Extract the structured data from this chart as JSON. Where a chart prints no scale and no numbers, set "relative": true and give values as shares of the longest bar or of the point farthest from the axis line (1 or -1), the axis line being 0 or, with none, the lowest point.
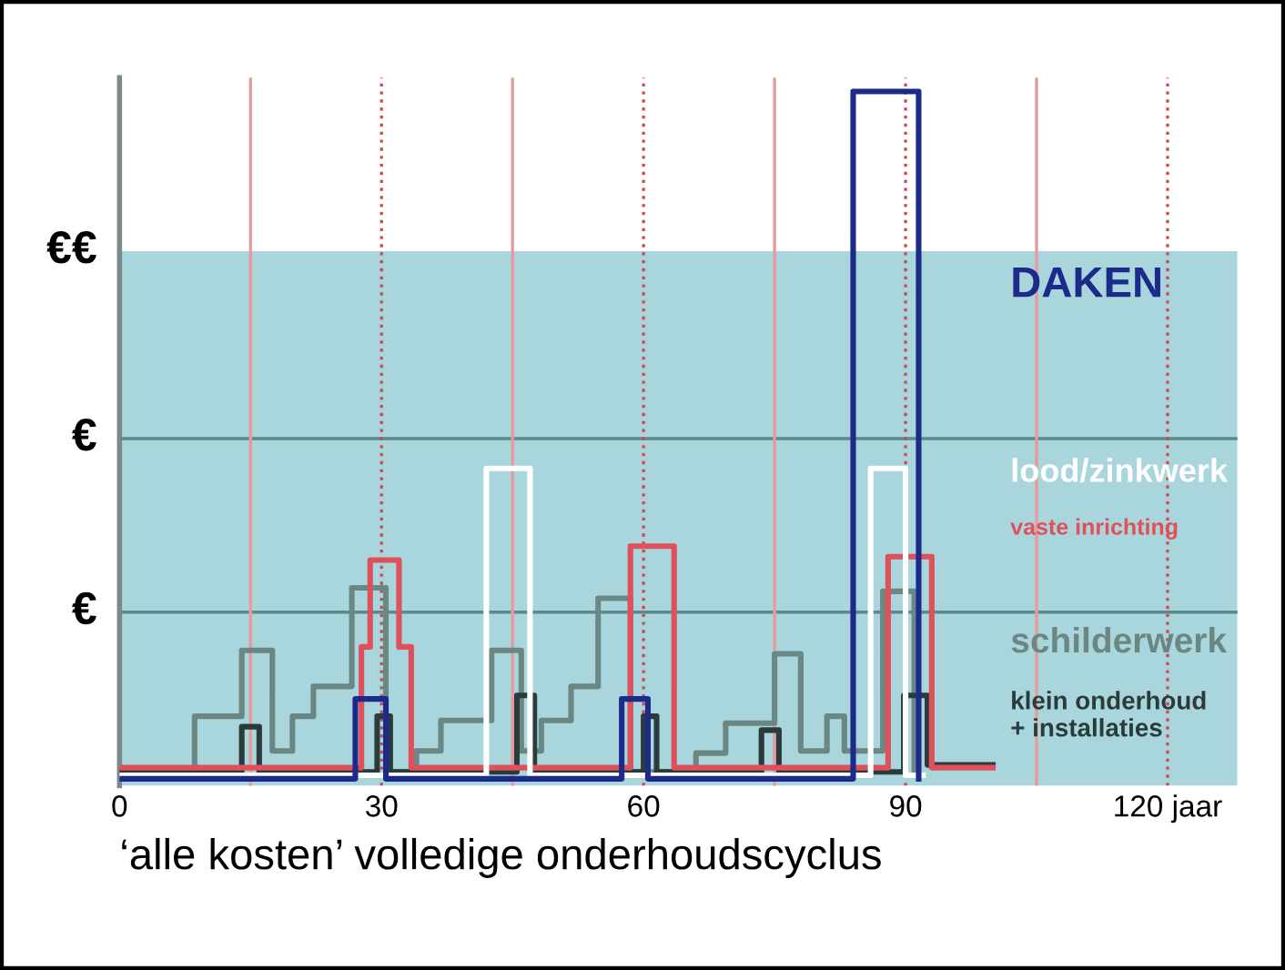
{
  "chart_data": {
    "type": "step",
    "relative": true,
    "xlabel": "‘alle kosten’ volledige onderhoudscyclus",
    "xlim": [
      0,
      128
    ],
    "xticks": [
      0,
      30,
      60,
      90,
      {
        "value": 120,
        "label": "120 jaar"
      }
    ],
    "line_style": "solid",
    "marker": "none",
    "bands": [
      {
        "axis": "y",
        "from": 0,
        "to": 0.77,
        "color": "#a9d6dc",
        "label": "€€"
      }
    ],
    "ref_lines": [
      {
        "axis": "y",
        "value": 0.5,
        "color": "#5a8a8c",
        "line_style": "solid",
        "label": "€"
      },
      {
        "axis": "y",
        "value": 0.25,
        "color": "#5a8a8c",
        "line_style": "solid",
        "label": "€"
      },
      {
        "axis": "x",
        "value": 15,
        "color": "#e89a9a",
        "line_style": "solid"
      },
      {
        "axis": "x",
        "value": 30,
        "color": "#d04a50",
        "line_style": "dotted"
      },
      {
        "axis": "x",
        "value": 45,
        "color": "#e89a9a",
        "line_style": "solid"
      },
      {
        "axis": "x",
        "value": 60,
        "color": "#d04a50",
        "line_style": "dotted"
      },
      {
        "axis": "x",
        "value": 75,
        "color": "#e89a9a",
        "line_style": "solid"
      },
      {
        "axis": "x",
        "value": 90,
        "color": "#d04a50",
        "line_style": "dotted"
      },
      {
        "axis": "x",
        "value": 105,
        "color": "#e89a9a",
        "line_style": "solid"
      },
      {
        "axis": "x",
        "value": 120,
        "color": "#d04a50",
        "line_style": "dotted"
      }
    ],
    "series": [
      {
        "name": "schilderwerk",
        "color": "#6b8783",
        "x": [
          0,
          8.6,
          14,
          17.5,
          19.8,
          22.2,
          26.6,
          30.5,
          34,
          36.8,
          42.6,
          46,
          48.3,
          51.7,
          54.8,
          58.5,
          66,
          69.4,
          75,
          78,
          81,
          83,
          87.4,
          91
        ],
        "values": [
          0.02,
          0.1,
          0.195,
          0.05,
          0.1,
          0.143,
          0.285,
          0.02,
          0.05,
          0.094,
          0.195,
          0.05,
          0.094,
          0.143,
          0.27,
          0.02,
          0.047,
          0.09,
          0.19,
          0.05,
          0.1,
          0.05,
          0.28,
          0.02
        ]
      },
      {
        "name": "klein onderhoud\n+ installaties",
        "color": "#2b3b3b",
        "x": [
          0,
          14,
          16,
          29.5,
          31,
          45.5,
          47.5,
          60,
          61.5,
          73.5,
          75.5,
          89.8,
          92.5,
          100
        ],
        "values": [
          0.02,
          0.085,
          0.02,
          0.1,
          0.02,
          0.13,
          0.02,
          0.1,
          0.02,
          0.08,
          0.02,
          0.13,
          0.03,
          0.03
        ]
      },
      {
        "name": "vaste inrichting",
        "color": "#e0505a",
        "x": [
          0,
          27.7,
          28.7,
          32,
          33.4,
          58.5,
          63.5,
          88,
          93,
          100
        ],
        "values": [
          0.026,
          0.2,
          0.325,
          0.2,
          0.026,
          0.345,
          0.026,
          0.33,
          0.026,
          0.026
        ]
      },
      {
        "name": "lood/zinkwerk",
        "color": "#ffffff",
        "x": [
          0,
          42,
          47,
          86,
          90,
          92
        ],
        "values": [
          0.015,
          0.457,
          0.015,
          0.457,
          0.015,
          0.015
        ]
      },
      {
        "name": "DAKEN",
        "color": "#1c2a8a",
        "x": [
          0,
          27,
          30.5,
          57.5,
          60.5,
          84,
          91.5
        ],
        "values": [
          0.01,
          0.125,
          0.01,
          0.125,
          0.01,
          1,
          0.01
        ]
      }
    ]
  }
}
